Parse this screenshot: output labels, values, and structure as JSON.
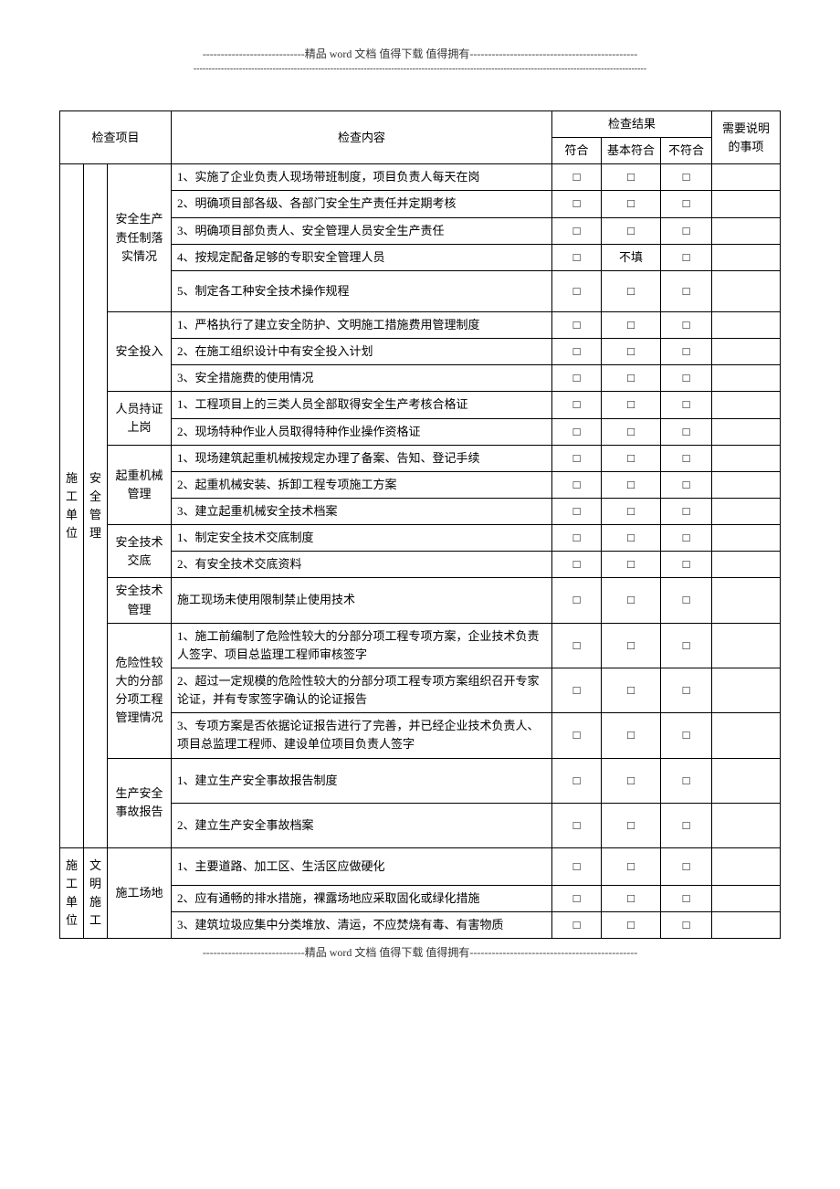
{
  "header": {
    "top": "----------------------------精品 word 文档  值得下载  值得拥有----------------------------------------------",
    "dash": "-----------------------------------------------------------------------------------------------------------------------------------------------------"
  },
  "footer": {
    "line": "----------------------------精品 word 文档  值得下载  值得拥有----------------------------------------------"
  },
  "th": {
    "project": "检查项目",
    "content": "检查内容",
    "result": "检查结果",
    "note": "需要说明的事项",
    "ok": "符合",
    "partial": "基本符合",
    "bad": "不符合"
  },
  "org1": "施工单位",
  "org2": "施工单位",
  "grp1": "安全管理",
  "grp2": "文明施工",
  "cat": {
    "a": "安全生产责任制落实情况",
    "b": "安全投入",
    "c": "人员持证上岗",
    "d": "起重机械管理",
    "e": "安全技术交底",
    "f": "安全技术管理",
    "g": "危险性较大的分部分项工程管理情况",
    "h": "生产安全事故报告",
    "i": "施工场地"
  },
  "rows": {
    "r1": {
      "c": "1、实施了企业负责人现场带班制度，项目负责人每天在岗",
      "a": "□",
      "b": "□",
      "d": "□",
      "n": ""
    },
    "r2": {
      "c": "2、明确项目部各级、各部门安全生产责任并定期考核",
      "a": "□",
      "b": "□",
      "d": "□",
      "n": ""
    },
    "r3": {
      "c": "3、明确项目部负责人、安全管理人员安全生产责任",
      "a": "□",
      "b": "□",
      "d": "□",
      "n": ""
    },
    "r4": {
      "c": "4、按规定配备足够的专职安全管理人员",
      "a": "□",
      "b": "不填",
      "d": "□",
      "n": ""
    },
    "r5": {
      "c": "5、制定各工种安全技术操作规程",
      "a": "□",
      "b": "□",
      "d": "□",
      "n": ""
    },
    "r6": {
      "c": "1、严格执行了建立安全防护、文明施工措施费用管理制度",
      "a": "□",
      "b": "□",
      "d": "□",
      "n": ""
    },
    "r7": {
      "c": "2、在施工组织设计中有安全投入计划",
      "a": "□",
      "b": "□",
      "d": "□",
      "n": ""
    },
    "r8": {
      "c": "3、安全措施费的使用情况",
      "a": "□",
      "b": "□",
      "d": "□",
      "n": ""
    },
    "r9": {
      "c": "1、工程项目上的三类人员全部取得安全生产考核合格证",
      "a": "□",
      "b": "□",
      "d": "□",
      "n": ""
    },
    "r10": {
      "c": "2、现场特种作业人员取得特种作业操作资格证",
      "a": "□",
      "b": "□",
      "d": "□",
      "n": ""
    },
    "r11": {
      "c": "1、现场建筑起重机械按规定办理了备案、告知、登记手续",
      "a": "□",
      "b": "□",
      "d": "□",
      "n": ""
    },
    "r12": {
      "c": "2、起重机械安装、拆卸工程专项施工方案",
      "a": "□",
      "b": "□",
      "d": "□",
      "n": ""
    },
    "r13": {
      "c": "3、建立起重机械安全技术档案",
      "a": "□",
      "b": "□",
      "d": "□",
      "n": ""
    },
    "r14": {
      "c": "1、制定安全技术交底制度",
      "a": "□",
      "b": "□",
      "d": "□",
      "n": ""
    },
    "r15": {
      "c": "2、有安全技术交底资料",
      "a": "□",
      "b": "□",
      "d": "□",
      "n": ""
    },
    "r16": {
      "c": "施工现场未使用限制禁止使用技术",
      "a": "□",
      "b": "□",
      "d": "□",
      "n": ""
    },
    "r17": {
      "c": "1、施工前编制了危险性较大的分部分项工程专项方案，企业技术负责人签字、项目总监理工程师审核签字",
      "a": "□",
      "b": "□",
      "d": "□",
      "n": ""
    },
    "r18": {
      "c": "2、超过一定规模的危险性较大的分部分项工程专项方案组织召开专家论证，并有专家签字确认的论证报告",
      "a": "□",
      "b": "□",
      "d": "□",
      "n": ""
    },
    "r19": {
      "c": "3、专项方案是否依据论证报告进行了完善，并已经企业技术负责人、项目总监理工程师、建设单位项目负责人签字",
      "a": "□",
      "b": "□",
      "d": "□",
      "n": ""
    },
    "r20": {
      "c": "1、建立生产安全事故报告制度",
      "a": "□",
      "b": "□",
      "d": "□",
      "n": ""
    },
    "r21": {
      "c": "2、建立生产安全事故档案",
      "a": "□",
      "b": "□",
      "d": "□",
      "n": ""
    },
    "r22": {
      "c": "1、主要道路、加工区、生活区应做硬化",
      "a": "□",
      "b": "□",
      "d": "□",
      "n": ""
    },
    "r23": {
      "c": "2、应有通畅的排水措施，裸露场地应采取固化或绿化措施",
      "a": "□",
      "b": "□",
      "d": "□",
      "n": ""
    },
    "r24": {
      "c": "3、建筑垃圾应集中分类堆放、清运，不应焚烧有毒、有害物质",
      "a": "□",
      "b": "□",
      "d": "□",
      "n": ""
    }
  }
}
